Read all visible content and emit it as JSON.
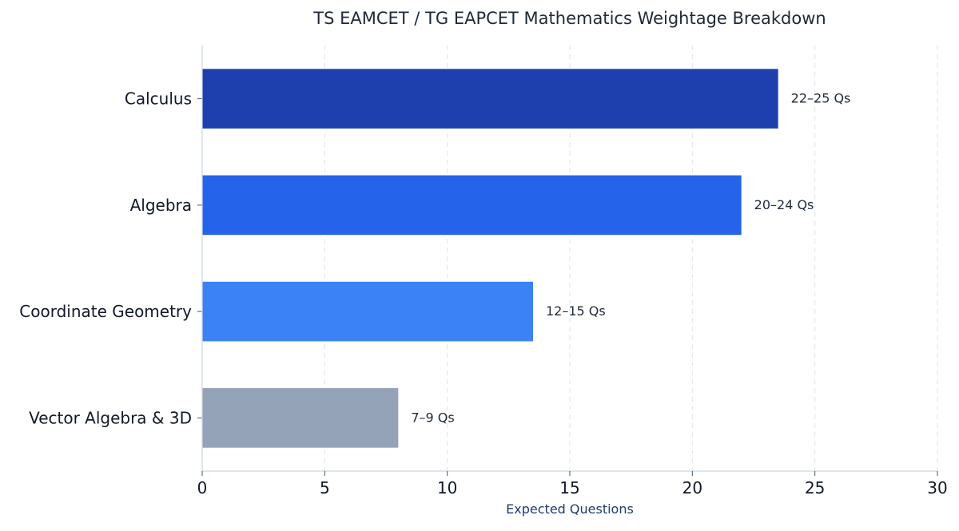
{
  "chart_data": {
    "type": "bar",
    "orientation": "horizontal",
    "title": "TS EAMCET / TG EAPCET Mathematics Weightage Breakdown",
    "xlabel": "Expected Questions",
    "ylabel": "",
    "xlim": [
      0,
      30
    ],
    "xticks": [
      0,
      5,
      10,
      15,
      20,
      25,
      30
    ],
    "grid": "vertical dashed",
    "categories": [
      "Calculus",
      "Algebra",
      "Coordinate Geometry",
      "Vector Algebra & 3D"
    ],
    "values": [
      23.5,
      22,
      13.5,
      8
    ],
    "data_labels": [
      "22–25 Qs",
      "20–24 Qs",
      "12–15 Qs",
      "7–9 Qs"
    ],
    "colors": [
      "#1e40af",
      "#2563eb",
      "#3b82f6",
      "#94a3b8"
    ]
  }
}
